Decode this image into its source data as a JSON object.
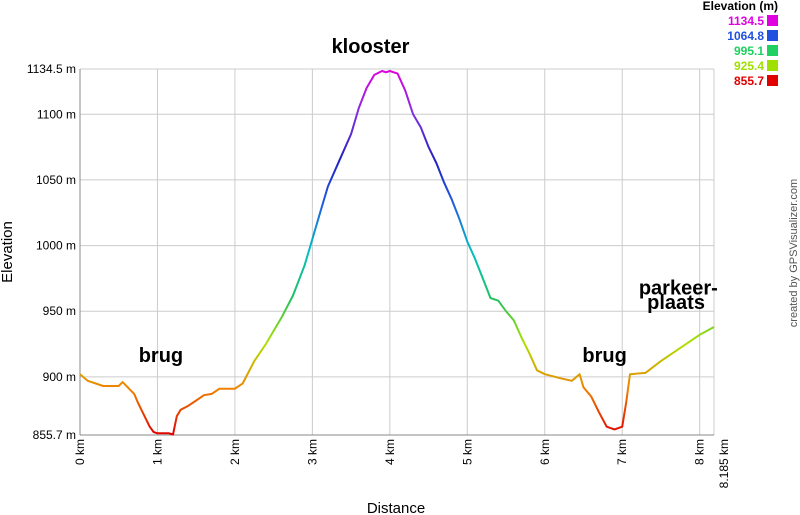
{
  "chart_data": {
    "type": "line",
    "title": "",
    "xlabel": "Distance",
    "ylabel": "Elevation",
    "xlim": [
      0,
      8.185
    ],
    "ylim": [
      855.7,
      1134.5
    ],
    "x_ticks": [
      0,
      1,
      2,
      3,
      4,
      5,
      6,
      7,
      8,
      8.185
    ],
    "x_tick_labels": [
      "0 km",
      "1 km",
      "2 km",
      "3 km",
      "4 km",
      "5 km",
      "6 km",
      "7 km",
      "8 km",
      "8.185 km"
    ],
    "y_ticks": [
      855.7,
      900,
      950,
      1000,
      1050,
      1100,
      1134.5
    ],
    "y_tick_labels": [
      "855.7 m",
      "900 m",
      "950 m",
      "1000 m",
      "1050 m",
      "1100 m",
      "1134.5 m"
    ],
    "grid": true,
    "series": [
      {
        "x": [
          0,
          0.1,
          0.3,
          0.5,
          0.55,
          0.7,
          0.75,
          0.9,
          0.95,
          1.0,
          1.15,
          1.2,
          1.25,
          1.3,
          1.4,
          1.5,
          1.6,
          1.7,
          1.8,
          1.9,
          2.0,
          2.1,
          2.25,
          2.4,
          2.5,
          2.6,
          2.75,
          2.9,
          3.0,
          3.1,
          3.2,
          3.35,
          3.5,
          3.6,
          3.7,
          3.8,
          3.9,
          3.95,
          4.0,
          4.1,
          4.2,
          4.3,
          4.4,
          4.5,
          4.6,
          4.7,
          4.8,
          4.9,
          5.0,
          5.1,
          5.2,
          5.3,
          5.4,
          5.5,
          5.6,
          5.7,
          5.8,
          5.9,
          6.0,
          6.2,
          6.35,
          6.45,
          6.5,
          6.6,
          6.7,
          6.8,
          6.9,
          7.0,
          7.05,
          7.1,
          7.3,
          7.5,
          7.7,
          7.9,
          8.0,
          8.185
        ],
        "y": [
          902,
          897,
          893,
          893,
          896,
          887,
          880,
          862,
          858,
          857,
          857,
          856,
          870,
          875,
          878,
          882,
          886,
          887,
          891,
          891,
          891,
          895,
          912,
          925,
          935,
          945,
          962,
          985,
          1005,
          1025,
          1045,
          1065,
          1085,
          1105,
          1120,
          1130,
          1133,
          1132,
          1133,
          1131,
          1118,
          1100,
          1090,
          1075,
          1063,
          1048,
          1035,
          1020,
          1003,
          990,
          975,
          960,
          958,
          950,
          943,
          930,
          918,
          905,
          902,
          899,
          897,
          902,
          892,
          885,
          873,
          862,
          860,
          862,
          880,
          902,
          903,
          912,
          920,
          928,
          932,
          938
        ],
        "color_scale": [
          "#e00000",
          "#f08000",
          "#b0e000",
          "#20c060",
          "#00c0c0",
          "#2060e0",
          "#2020c0",
          "#8030e0",
          "#e000e0"
        ]
      }
    ],
    "annotations": [
      {
        "text": "klooster",
        "x": 3.75,
        "y": 1134.5
      },
      {
        "text": "brug",
        "x": 1.2,
        "y": 900
      },
      {
        "text": "brug",
        "x": 6.85,
        "y": 900
      },
      {
        "text": "parkeer-",
        "x": 7.75,
        "y": 955
      },
      {
        "text": "plaats",
        "x": 7.85,
        "y": 944
      }
    ],
    "legend": {
      "title": "Elevation (m)",
      "placement": "top-right",
      "entries": [
        {
          "label": "1134.5",
          "color": "#e000e0"
        },
        {
          "label": "1064.8",
          "color": "#2050e0"
        },
        {
          "label": "995.1",
          "color": "#20d060"
        },
        {
          "label": "925.4",
          "color": "#a0e000"
        },
        {
          "label": "855.7",
          "color": "#e00000"
        }
      ]
    },
    "credit": "created by GPSVisualizer.com"
  }
}
